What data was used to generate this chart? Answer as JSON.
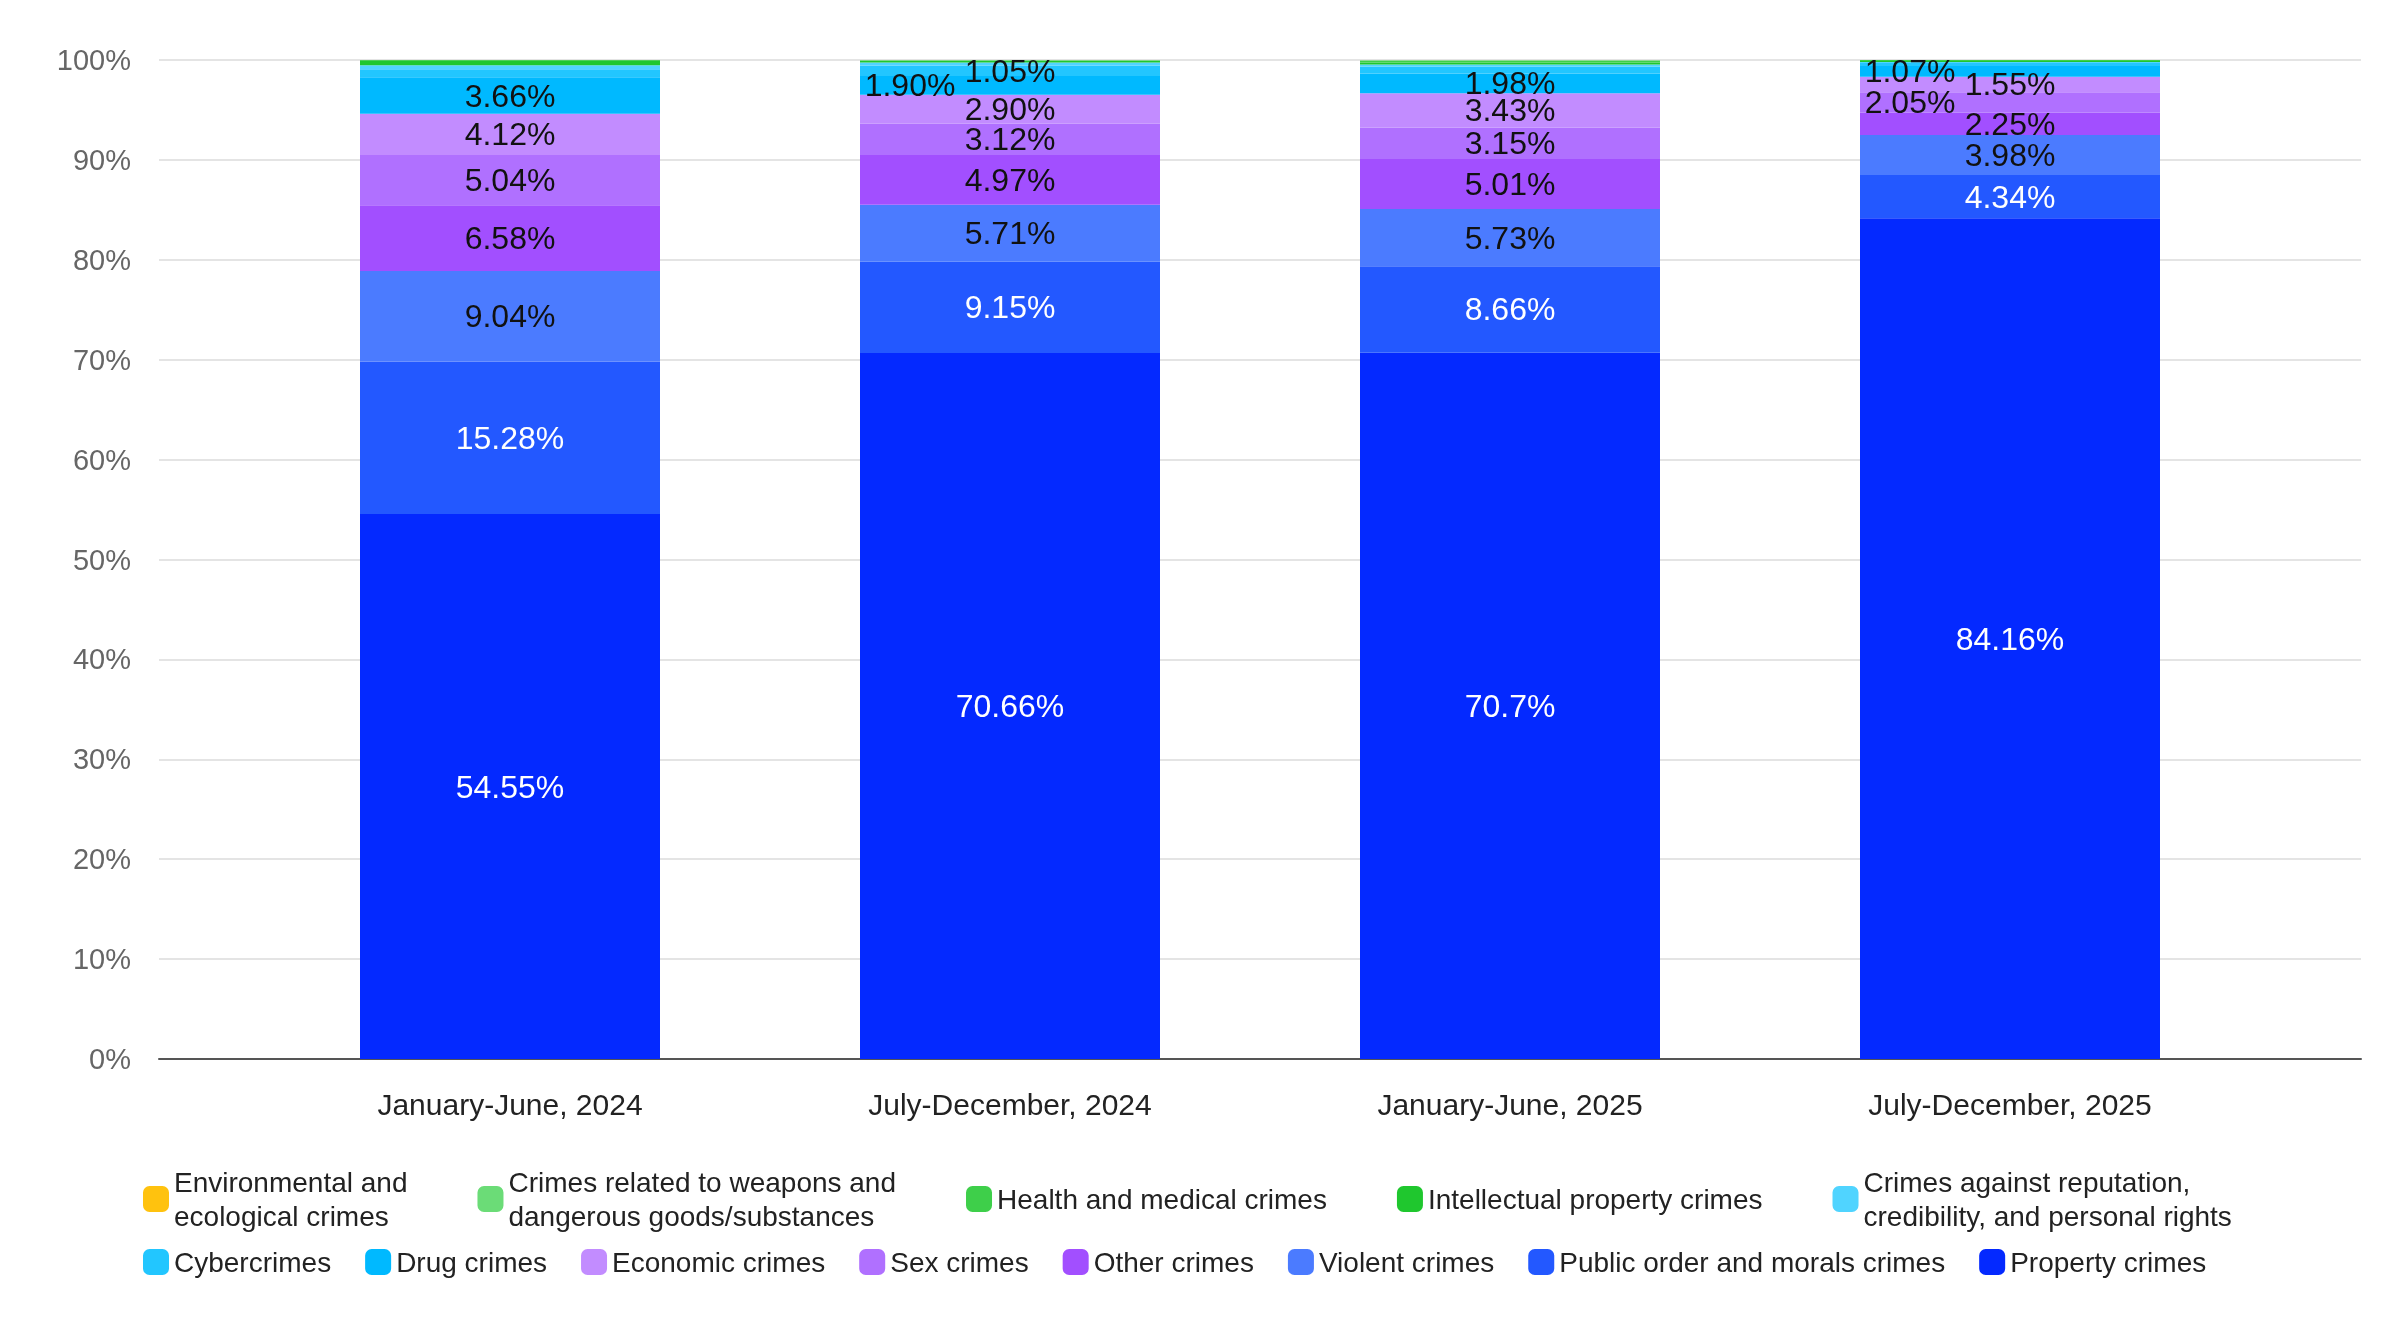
{
  "chart_data": {
    "type": "bar",
    "stacked": true,
    "grid": "y",
    "legend": "bottom",
    "categories": [
      "January-June, 2024",
      "July-December, 2024",
      "January-June, 2025",
      "July-December, 2025"
    ],
    "ylim": [
      0,
      100
    ],
    "yticks": [
      {
        "value": 0,
        "label": "0%"
      },
      {
        "value": 10,
        "label": "10%"
      },
      {
        "value": 20,
        "label": "20%"
      },
      {
        "value": 30,
        "label": "30%"
      },
      {
        "value": 40,
        "label": "40%"
      },
      {
        "value": 50,
        "label": "50%"
      },
      {
        "value": 60,
        "label": "60%"
      },
      {
        "value": 70,
        "label": "70%"
      },
      {
        "value": 80,
        "label": "80%"
      },
      {
        "value": 90,
        "label": "90%"
      },
      {
        "value": 100,
        "label": "100%"
      }
    ],
    "series": [
      {
        "name": "Property crimes",
        "color": "#0429ff",
        "values": [
          54.55,
          70.66,
          70.7,
          84.16
        ],
        "value_labels": [
          "54.55%",
          "70.66%",
          "70.7%",
          "84.16%"
        ]
      },
      {
        "name": "Public order and morals crimes",
        "color": "#2358ff",
        "values": [
          15.28,
          9.15,
          8.66,
          4.34
        ],
        "value_labels": [
          "15.28%",
          "9.15%",
          "8.66%",
          "4.34%"
        ]
      },
      {
        "name": "Violent crimes",
        "color": "#4b7bff",
        "values": [
          9.04,
          5.71,
          5.73,
          3.98
        ],
        "value_labels": [
          "9.04%",
          "5.71%",
          "5.73%",
          "3.98%"
        ]
      },
      {
        "name": "Other crimes",
        "color": "#a24fff",
        "values": [
          6.58,
          4.97,
          5.01,
          2.25
        ],
        "value_labels": [
          "6.58%",
          "4.97%",
          "5.01%",
          "2.25%"
        ]
      },
      {
        "name": "Sex crimes",
        "color": "#b070ff",
        "values": [
          5.04,
          3.12,
          3.15,
          2.05
        ],
        "value_labels": [
          "5.04%",
          "3.12%",
          "3.15%",
          "2.05%"
        ]
      },
      {
        "name": "Economic crimes",
        "color": "#c28cff",
        "values": [
          4.12,
          2.9,
          3.43,
          1.55
        ],
        "value_labels": [
          "4.12%",
          "2.90%",
          "3.43%",
          "1.55%"
        ]
      },
      {
        "name": "Drug crimes",
        "color": "#00b9ff",
        "values": [
          3.66,
          1.9,
          1.98,
          1.07
        ],
        "value_labels": [
          "3.66%",
          "1.90%",
          "1.98%",
          "1.07%"
        ]
      },
      {
        "name": "Cybercrimes",
        "color": "#22c6ff",
        "values": [
          0.8,
          1.05,
          0.7,
          0.3
        ],
        "value_labels": [
          null,
          "1.05%",
          null,
          null
        ]
      },
      {
        "name": "Crimes against reputation, credibility, and personal rights",
        "color": "#50d4ff",
        "values": [
          0.4,
          0.3,
          0.2,
          0.1
        ]
      },
      {
        "name": "Intellectual property crimes",
        "color": "#1fc72e",
        "values": [
          0.5,
          0.2,
          0.2,
          0.1
        ]
      },
      {
        "name": "Health and medical crimes",
        "color": "#3ecf4a",
        "values": [
          0,
          0,
          0.2,
          0.1
        ]
      },
      {
        "name": "Crimes related to weapons and dangerous goods/substances",
        "color": "#6bdc77",
        "values": [
          0,
          0,
          0,
          0
        ]
      },
      {
        "name": "Environmental and ecological crimes",
        "color": "#ffc20e",
        "values": [
          0,
          0,
          0,
          0
        ]
      }
    ]
  }
}
